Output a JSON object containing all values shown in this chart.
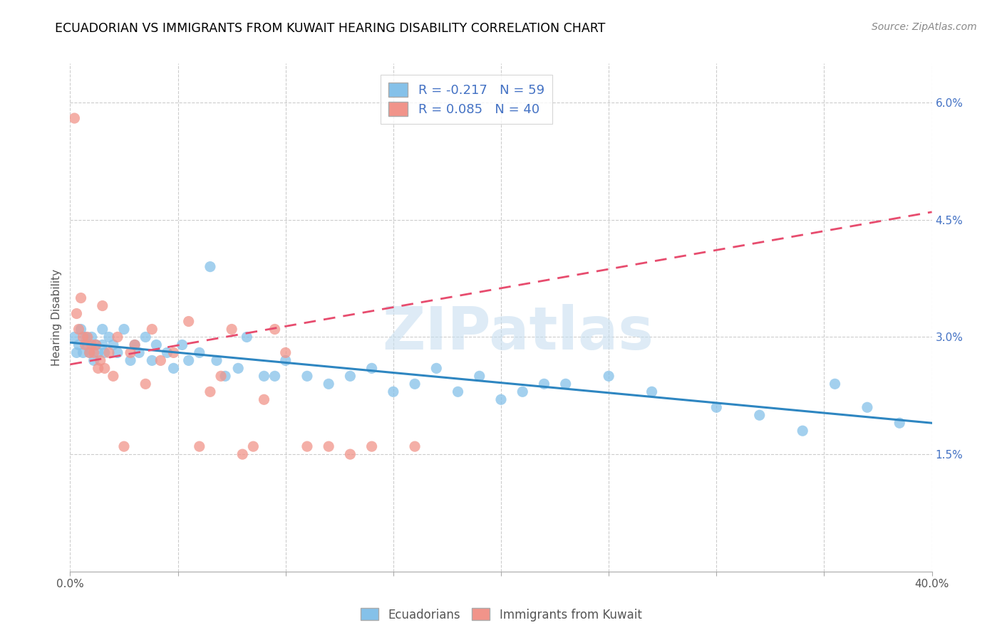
{
  "title": "ECUADORIAN VS IMMIGRANTS FROM KUWAIT HEARING DISABILITY CORRELATION CHART",
  "source": "Source: ZipAtlas.com",
  "ylabel": "Hearing Disability",
  "xlim": [
    0.0,
    0.4
  ],
  "ylim": [
    0.0,
    0.065
  ],
  "xticks": [
    0.0,
    0.05,
    0.1,
    0.15,
    0.2,
    0.25,
    0.3,
    0.35,
    0.4
  ],
  "yticks_right": [
    0.015,
    0.03,
    0.045,
    0.06
  ],
  "yticklabels_right": [
    "1.5%",
    "3.0%",
    "4.5%",
    "6.0%"
  ],
  "blue_color": "#85C1E9",
  "pink_color": "#F1948A",
  "blue_line_color": "#2E86C1",
  "pink_line_color": "#E74C6E",
  "legend_label_blue": "R = -0.217   N = 59",
  "legend_label_pink": "R = 0.085   N = 40",
  "legend_label_blue_bottom": "Ecuadorians",
  "legend_label_pink_bottom": "Immigrants from Kuwait",
  "watermark": "ZIPatlas",
  "blue_scatter_x": [
    0.002,
    0.003,
    0.004,
    0.005,
    0.006,
    0.007,
    0.008,
    0.009,
    0.01,
    0.011,
    0.012,
    0.013,
    0.015,
    0.015,
    0.016,
    0.018,
    0.02,
    0.022,
    0.025,
    0.028,
    0.03,
    0.032,
    0.035,
    0.038,
    0.04,
    0.045,
    0.048,
    0.052,
    0.055,
    0.06,
    0.065,
    0.068,
    0.072,
    0.078,
    0.082,
    0.09,
    0.095,
    0.1,
    0.11,
    0.12,
    0.13,
    0.14,
    0.15,
    0.16,
    0.17,
    0.18,
    0.19,
    0.2,
    0.21,
    0.22,
    0.23,
    0.25,
    0.27,
    0.3,
    0.32,
    0.34,
    0.355,
    0.37,
    0.385
  ],
  "blue_scatter_y": [
    0.03,
    0.028,
    0.029,
    0.031,
    0.028,
    0.03,
    0.029,
    0.028,
    0.03,
    0.027,
    0.029,
    0.028,
    0.031,
    0.029,
    0.028,
    0.03,
    0.029,
    0.028,
    0.031,
    0.027,
    0.029,
    0.028,
    0.03,
    0.027,
    0.029,
    0.028,
    0.026,
    0.029,
    0.027,
    0.028,
    0.039,
    0.027,
    0.025,
    0.026,
    0.03,
    0.025,
    0.025,
    0.027,
    0.025,
    0.024,
    0.025,
    0.026,
    0.023,
    0.024,
    0.026,
    0.023,
    0.025,
    0.022,
    0.023,
    0.024,
    0.024,
    0.025,
    0.023,
    0.021,
    0.02,
    0.018,
    0.024,
    0.021,
    0.019
  ],
  "pink_scatter_x": [
    0.002,
    0.003,
    0.004,
    0.005,
    0.006,
    0.007,
    0.008,
    0.009,
    0.01,
    0.011,
    0.012,
    0.013,
    0.014,
    0.015,
    0.016,
    0.018,
    0.02,
    0.022,
    0.025,
    0.028,
    0.03,
    0.035,
    0.038,
    0.042,
    0.048,
    0.055,
    0.06,
    0.065,
    0.07,
    0.075,
    0.08,
    0.085,
    0.09,
    0.095,
    0.1,
    0.11,
    0.12,
    0.13,
    0.14,
    0.16
  ],
  "pink_scatter_y": [
    0.058,
    0.033,
    0.031,
    0.035,
    0.03,
    0.029,
    0.03,
    0.028,
    0.029,
    0.028,
    0.029,
    0.026,
    0.027,
    0.034,
    0.026,
    0.028,
    0.025,
    0.03,
    0.016,
    0.028,
    0.029,
    0.024,
    0.031,
    0.027,
    0.028,
    0.032,
    0.016,
    0.023,
    0.025,
    0.031,
    0.015,
    0.016,
    0.022,
    0.031,
    0.028,
    0.016,
    0.016,
    0.015,
    0.016,
    0.016
  ],
  "blue_trendline_x": [
    0.0,
    0.4
  ],
  "blue_trendline_y": [
    0.0293,
    0.019
  ],
  "pink_trendline_x": [
    0.0,
    0.4
  ],
  "pink_trendline_y": [
    0.0265,
    0.046
  ]
}
